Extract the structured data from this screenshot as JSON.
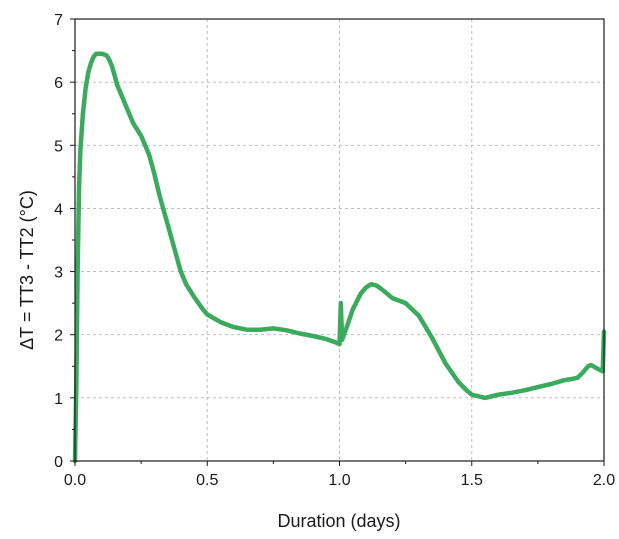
{
  "chart_data": {
    "type": "line",
    "title": "",
    "xlabel": "Duration (days)",
    "ylabel": "ΔT = TT3 - TT2 (°C)",
    "xlim": [
      0.0,
      2.0
    ],
    "ylim": [
      0,
      7
    ],
    "x_ticks": [
      "0.0",
      "0.5",
      "1.0",
      "1.5",
      "2.0"
    ],
    "y_ticks": [
      "0",
      "1",
      "2",
      "3",
      "4",
      "5",
      "6",
      "7"
    ],
    "grid": true,
    "legend": "none",
    "series": [
      {
        "color": "#3aaa5c",
        "x": [
          0.0,
          0.005,
          0.01,
          0.015,
          0.02,
          0.03,
          0.04,
          0.05,
          0.06,
          0.07,
          0.08,
          0.09,
          0.1,
          0.11,
          0.12,
          0.13,
          0.14,
          0.15,
          0.16,
          0.18,
          0.2,
          0.22,
          0.25,
          0.28,
          0.3,
          0.32,
          0.35,
          0.38,
          0.4,
          0.42,
          0.45,
          0.48,
          0.5,
          0.55,
          0.6,
          0.65,
          0.7,
          0.75,
          0.8,
          0.85,
          0.9,
          0.95,
          0.99,
          1.0,
          1.005,
          1.01,
          1.03,
          1.05,
          1.08,
          1.1,
          1.12,
          1.14,
          1.16,
          1.18,
          1.2,
          1.25,
          1.3,
          1.35,
          1.4,
          1.45,
          1.48,
          1.5,
          1.53,
          1.55,
          1.58,
          1.6,
          1.65,
          1.7,
          1.75,
          1.8,
          1.85,
          1.88,
          1.9,
          1.92,
          1.94,
          1.95,
          1.96,
          1.98,
          1.995,
          2.0
        ],
        "y": [
          0.0,
          1.2,
          3.0,
          4.3,
          4.9,
          5.5,
          5.9,
          6.15,
          6.3,
          6.4,
          6.45,
          6.45,
          6.45,
          6.44,
          6.42,
          6.35,
          6.25,
          6.1,
          5.95,
          5.75,
          5.55,
          5.35,
          5.15,
          4.85,
          4.55,
          4.2,
          3.75,
          3.3,
          3.0,
          2.8,
          2.6,
          2.42,
          2.32,
          2.2,
          2.12,
          2.08,
          2.08,
          2.1,
          2.07,
          2.02,
          1.98,
          1.93,
          1.87,
          1.85,
          2.5,
          1.92,
          2.15,
          2.4,
          2.65,
          2.75,
          2.8,
          2.78,
          2.72,
          2.65,
          2.58,
          2.5,
          2.3,
          1.95,
          1.55,
          1.25,
          1.12,
          1.05,
          1.02,
          1.0,
          1.03,
          1.05,
          1.08,
          1.12,
          1.17,
          1.22,
          1.28,
          1.3,
          1.32,
          1.4,
          1.5,
          1.52,
          1.5,
          1.45,
          1.42,
          2.05
        ]
      }
    ]
  }
}
